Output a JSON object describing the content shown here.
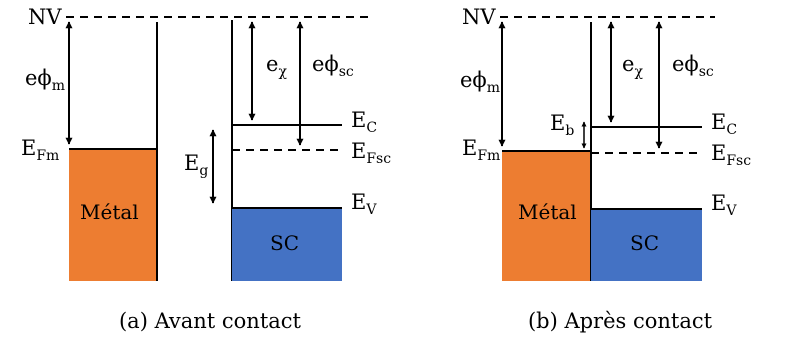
{
  "colors": {
    "metal": "#ED7D31",
    "semiconductor": "#4472C4",
    "line": "#000000"
  },
  "panel_a": {
    "caption": "(a) Avant contact",
    "nv": "NV",
    "ephi_m": {
      "base": "eϕ",
      "sub": "m"
    },
    "e_fm": {
      "base": "E",
      "sub": "Fm"
    },
    "metal": "Métal",
    "e_chi": {
      "base": "e",
      "sub": "χ"
    },
    "ephi_sc": {
      "base": "eϕ",
      "sub": "sc"
    },
    "e_c": {
      "base": "E",
      "sub": "C"
    },
    "e_fsc": {
      "base": "E",
      "sub": "Fsc"
    },
    "e_g": {
      "base": "E",
      "sub": "g"
    },
    "e_v": {
      "base": "E",
      "sub": "V"
    },
    "sc": "SC"
  },
  "panel_b": {
    "caption": "(b) Après contact",
    "nv": "NV",
    "ephi_m": {
      "base": "eϕ",
      "sub": "m"
    },
    "e_fm": {
      "base": "E",
      "sub": "Fm"
    },
    "metal": "Métal",
    "e_chi": {
      "base": "e",
      "sub": "χ"
    },
    "ephi_sc": {
      "base": "eϕ",
      "sub": "sc"
    },
    "e_b": {
      "base": "E",
      "sub": "b"
    },
    "e_c": {
      "base": "E",
      "sub": "C"
    },
    "e_fsc": {
      "base": "E",
      "sub": "Fsc"
    },
    "e_v": {
      "base": "E",
      "sub": "V"
    },
    "sc": "SC"
  }
}
